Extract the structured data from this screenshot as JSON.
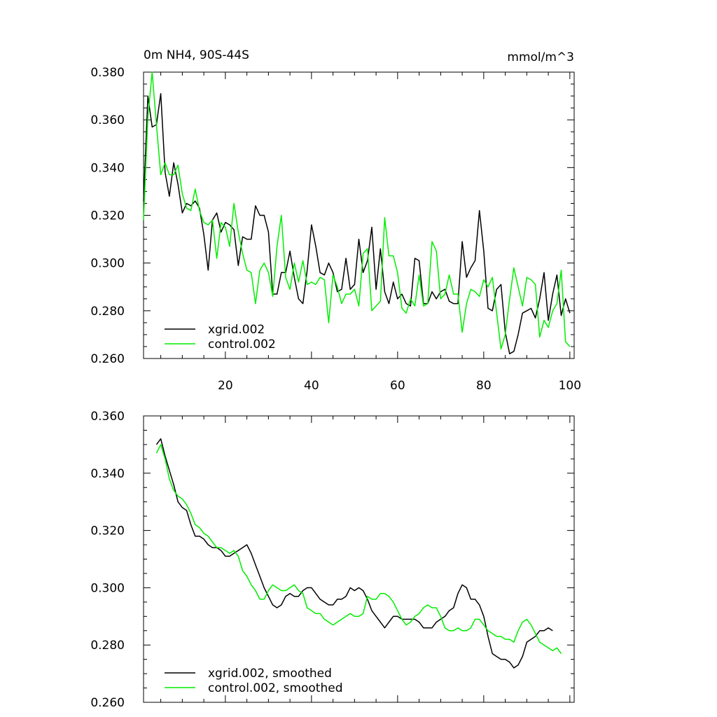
{
  "colors": {
    "xgrid": "#000000",
    "control": "#00ee00",
    "axis": "#000000",
    "background": "#ffffff"
  },
  "chart_data": [
    {
      "type": "line",
      "title_left": "0m NH4, 90S-44S",
      "title_right": "mmol/m^3",
      "xlim": [
        1,
        101
      ],
      "ylim": [
        0.26,
        0.38
      ],
      "x_ticks": [
        20,
        40,
        60,
        80,
        100
      ],
      "x_tick_labels": [
        "20",
        "40",
        "60",
        "80",
        "100"
      ],
      "y_ticks": [
        0.26,
        0.28,
        0.3,
        0.32,
        0.34,
        0.36,
        0.38
      ],
      "y_tick_labels": [
        "0.260",
        "0.280",
        "0.300",
        "0.320",
        "0.340",
        "0.360",
        "0.380"
      ],
      "series": [
        {
          "name": "xgrid.002",
          "color": "#000000",
          "x_start": 1,
          "values": [
            0.326,
            0.37,
            0.357,
            0.358,
            0.371,
            0.338,
            0.328,
            0.342,
            0.333,
            0.321,
            0.325,
            0.324,
            0.326,
            0.323,
            0.312,
            0.297,
            0.318,
            0.321,
            0.313,
            0.317,
            0.316,
            0.314,
            0.299,
            0.311,
            0.31,
            0.31,
            0.324,
            0.32,
            0.32,
            0.313,
            0.287,
            0.287,
            0.296,
            0.296,
            0.305,
            0.294,
            0.285,
            0.283,
            0.297,
            0.316,
            0.307,
            0.296,
            0.295,
            0.3,
            0.296,
            0.288,
            0.289,
            0.302,
            0.289,
            0.291,
            0.31,
            0.296,
            0.301,
            0.315,
            0.289,
            0.306,
            0.288,
            0.283,
            0.292,
            0.285,
            0.287,
            0.283,
            0.282,
            0.302,
            0.301,
            0.283,
            0.283,
            0.288,
            0.285,
            0.288,
            0.289,
            0.284,
            0.283,
            0.283,
            0.309,
            0.294,
            0.298,
            0.301,
            0.322,
            0.305,
            0.281,
            0.28,
            0.289,
            0.291,
            0.271,
            0.262,
            0.263,
            0.27,
            0.279,
            0.28,
            0.281,
            0.277,
            0.285,
            0.296,
            0.276,
            0.287,
            0.295,
            0.278,
            0.285,
            0.279
          ]
        },
        {
          "name": "control.002",
          "color": "#00ee00",
          "x_start": 1,
          "values": [
            0.318,
            0.361,
            0.38,
            0.358,
            0.337,
            0.342,
            0.337,
            0.337,
            0.341,
            0.329,
            0.323,
            0.322,
            0.331,
            0.322,
            0.317,
            0.316,
            0.318,
            0.302,
            0.317,
            0.315,
            0.307,
            0.325,
            0.313,
            0.304,
            0.297,
            0.296,
            0.283,
            0.297,
            0.3,
            0.296,
            0.286,
            0.307,
            0.32,
            0.294,
            0.289,
            0.3,
            0.292,
            0.301,
            0.291,
            0.292,
            0.291,
            0.294,
            0.293,
            0.275,
            0.295,
            0.29,
            0.283,
            0.287,
            0.287,
            0.289,
            0.282,
            0.304,
            0.306,
            0.28,
            0.282,
            0.284,
            0.319,
            0.303,
            0.303,
            0.296,
            0.281,
            0.279,
            0.285,
            0.282,
            0.295,
            0.282,
            0.283,
            0.309,
            0.305,
            0.285,
            0.287,
            0.295,
            0.287,
            0.287,
            0.271,
            0.283,
            0.289,
            0.288,
            0.286,
            0.293,
            0.29,
            0.294,
            0.279,
            0.264,
            0.27,
            0.285,
            0.298,
            0.29,
            0.282,
            0.294,
            0.293,
            0.291,
            0.269,
            0.276,
            0.273,
            0.28,
            0.283,
            0.297,
            0.267,
            0.265
          ]
        }
      ],
      "legend": [
        "xgrid.002",
        "control.002"
      ],
      "legend_position": "bottom-left"
    },
    {
      "type": "line",
      "xlim": [
        1,
        101
      ],
      "ylim": [
        0.26,
        0.36
      ],
      "y_ticks": [
        0.26,
        0.28,
        0.3,
        0.32,
        0.34,
        0.36
      ],
      "y_tick_labels": [
        "0.260",
        "0.280",
        "0.300",
        "0.320",
        "0.340",
        "0.360"
      ],
      "series": [
        {
          "name": "xgrid.002, smoothed",
          "color": "#000000",
          "x_start": 4,
          "values": [
            0.35,
            0.352,
            0.346,
            0.341,
            0.336,
            0.33,
            0.328,
            0.327,
            0.322,
            0.318,
            0.318,
            0.317,
            0.315,
            0.314,
            0.314,
            0.313,
            0.311,
            0.311,
            0.312,
            0.313,
            0.314,
            0.315,
            0.312,
            0.308,
            0.304,
            0.3,
            0.297,
            0.294,
            0.293,
            0.294,
            0.297,
            0.298,
            0.297,
            0.297,
            0.299,
            0.3,
            0.3,
            0.298,
            0.296,
            0.295,
            0.294,
            0.294,
            0.296,
            0.296,
            0.297,
            0.3,
            0.299,
            0.3,
            0.299,
            0.296,
            0.292,
            0.29,
            0.288,
            0.286,
            0.288,
            0.29,
            0.29,
            0.289,
            0.289,
            0.289,
            0.289,
            0.288,
            0.286,
            0.286,
            0.286,
            0.288,
            0.289,
            0.29,
            0.292,
            0.293,
            0.298,
            0.301,
            0.3,
            0.296,
            0.296,
            0.294,
            0.29,
            0.283,
            0.277,
            0.276,
            0.275,
            0.275,
            0.274,
            0.272,
            0.273,
            0.276,
            0.281,
            0.282,
            0.283,
            0.285,
            0.285,
            0.286,
            0.285
          ]
        },
        {
          "name": "control.002, smoothed",
          "color": "#00ee00",
          "x_start": 4,
          "values": [
            0.347,
            0.35,
            0.345,
            0.338,
            0.334,
            0.332,
            0.331,
            0.329,
            0.326,
            0.322,
            0.321,
            0.319,
            0.318,
            0.316,
            0.314,
            0.314,
            0.313,
            0.312,
            0.313,
            0.311,
            0.306,
            0.304,
            0.301,
            0.299,
            0.296,
            0.296,
            0.299,
            0.301,
            0.3,
            0.299,
            0.299,
            0.3,
            0.301,
            0.299,
            0.298,
            0.293,
            0.292,
            0.291,
            0.291,
            0.289,
            0.288,
            0.287,
            0.288,
            0.289,
            0.29,
            0.291,
            0.29,
            0.29,
            0.291,
            0.297,
            0.296,
            0.296,
            0.298,
            0.298,
            0.297,
            0.295,
            0.292,
            0.289,
            0.287,
            0.288,
            0.29,
            0.291,
            0.293,
            0.294,
            0.293,
            0.293,
            0.29,
            0.286,
            0.285,
            0.285,
            0.286,
            0.285,
            0.285,
            0.286,
            0.289,
            0.289,
            0.287,
            0.285,
            0.284,
            0.283,
            0.283,
            0.282,
            0.282,
            0.281,
            0.285,
            0.288,
            0.289,
            0.287,
            0.284,
            0.281,
            0.28,
            0.279,
            0.278,
            0.279,
            0.277
          ]
        }
      ],
      "legend": [
        "xgrid.002, smoothed",
        "control.002, smoothed"
      ],
      "legend_position": "bottom-left"
    }
  ]
}
